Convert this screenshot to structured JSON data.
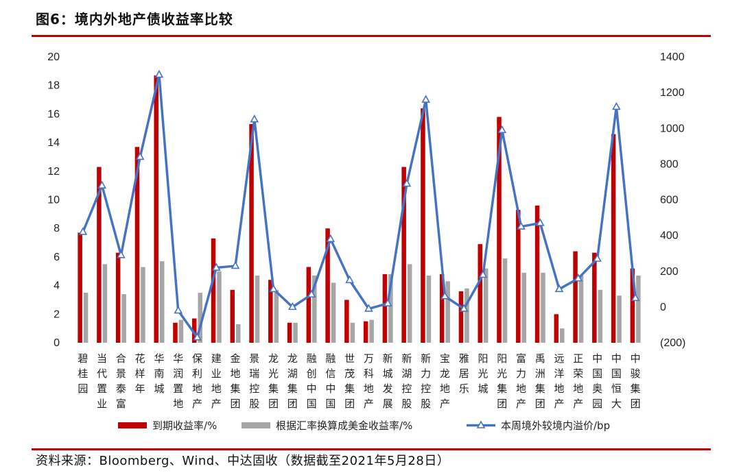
{
  "header": {
    "title": "图6：境内外地产债收益率比较"
  },
  "footer": {
    "source": "资料来源：Bloomberg、Wind、中达固收（数据截至2021年5月28日）"
  },
  "chart_data": {
    "type": "bar",
    "title": "图6：境内外地产债收益率比较",
    "categories": [
      "碧桂园",
      "当代置业",
      "合景泰富",
      "花样年",
      "华南城",
      "华润置地",
      "保利地产",
      "建业地产",
      "金地集团",
      "景瑞控股",
      "龙光集团",
      "龙湖集团",
      "融创中国",
      "融信中国",
      "世茂集团",
      "万科地产",
      "新城发展",
      "新湖控股",
      "新力控股",
      "宝龙地产",
      "雅居乐",
      "阳光城",
      "阳光集团",
      "富力地产",
      "禹洲集团",
      "远洋地产",
      "正荣地产",
      "中国奥园",
      "中国恒大",
      "中骏集团"
    ],
    "series": [
      {
        "name": "到期收益率/%",
        "type": "bar",
        "axis": "left",
        "color": "#c00000",
        "values": [
          7.7,
          12.3,
          6.3,
          13.7,
          18.7,
          1.4,
          1.7,
          7.3,
          3.7,
          15.3,
          4.4,
          1.4,
          5.3,
          8.0,
          3.0,
          1.5,
          4.8,
          12.3,
          16.4,
          4.8,
          3.6,
          6.9,
          15.8,
          9.3,
          9.6,
          2.0,
          6.4,
          6.3,
          14.6,
          5.2
        ]
      },
      {
        "name": "根据汇率换算成美金收益率/%",
        "type": "bar",
        "axis": "left",
        "color": "#a6a6a6",
        "values": [
          3.5,
          5.5,
          3.4,
          5.3,
          5.7,
          1.6,
          3.5,
          5.0,
          1.3,
          4.7,
          3.7,
          1.4,
          4.7,
          4.2,
          1.4,
          1.6,
          4.8,
          5.5,
          4.7,
          4.3,
          3.8,
          5.2,
          5.9,
          4.9,
          4.9,
          1.0,
          4.7,
          3.7,
          3.3,
          4.7
        ]
      },
      {
        "name": "本周境外较境内溢价/bp",
        "type": "line",
        "axis": "right",
        "color": "#4472c4",
        "values": [
          420,
          680,
          290,
          840,
          1300,
          -20,
          -170,
          220,
          230,
          1050,
          100,
          0,
          70,
          380,
          150,
          -10,
          20,
          690,
          1160,
          60,
          -10,
          180,
          990,
          450,
          470,
          100,
          160,
          270,
          1120,
          50
        ]
      }
    ],
    "y_left": {
      "min": 0,
      "max": 20,
      "ticks": [
        "0",
        "2",
        "4",
        "6",
        "8",
        "10",
        "12",
        "14",
        "16",
        "18",
        "20"
      ]
    },
    "y_right": {
      "min": -200,
      "max": 1400,
      "ticks": [
        "(200)",
        "0",
        "200",
        "400",
        "600",
        "800",
        "1000",
        "1200",
        "1400"
      ]
    },
    "grid": false,
    "legend_position": "bottom"
  }
}
